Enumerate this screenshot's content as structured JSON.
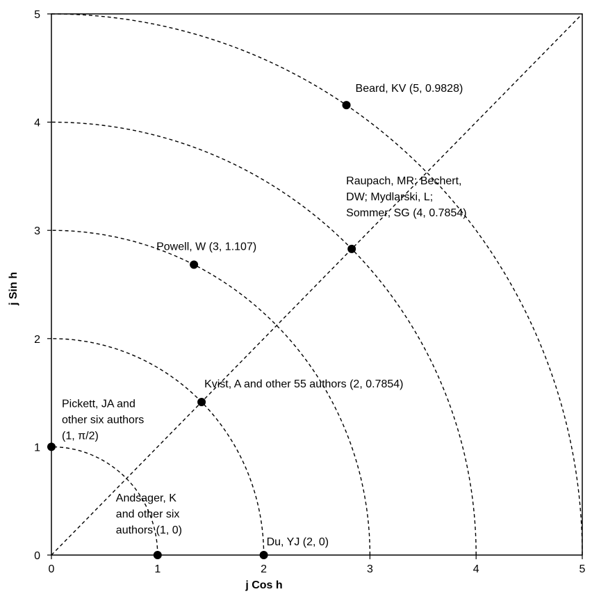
{
  "chart_data": {
    "type": "scatter",
    "xlabel": "j Cos h",
    "ylabel": "j Sin h",
    "xlim": [
      0,
      5
    ],
    "ylim": [
      0,
      5
    ],
    "x_ticks": [
      "0",
      "1",
      "2",
      "3",
      "4",
      "5"
    ],
    "y_ticks": [
      "0",
      "1",
      "2",
      "3",
      "4",
      "5"
    ],
    "grid": false,
    "arcs": [
      1,
      2,
      3,
      4,
      5
    ],
    "diagonal": true,
    "points": [
      {
        "x": 2.7785,
        "y": 4.1573,
        "label": [
          "Beard, KV (5, 0.9828)"
        ]
      },
      {
        "x": 2.8284,
        "y": 2.8284,
        "label": [
          "Raupach, MR; Bechert,",
          "DW; Mydlarski, L;",
          "Sommer, SG (4, 0.7854)"
        ]
      },
      {
        "x": 1.3424,
        "y": 2.6829,
        "label": [
          "Powell, W (3, 1.107)"
        ]
      },
      {
        "x": 1.4142,
        "y": 1.4142,
        "label": [
          "Kvist, A and other 55 authors (2, 0.7854)"
        ]
      },
      {
        "x": 0,
        "y": 1,
        "label": [
          "Pickett, JA and",
          "other six authors",
          "(1, π/2)"
        ]
      },
      {
        "x": 1,
        "y": 0,
        "label": [
          "Andsager, K",
          "and other six",
          "authors (1, 0)"
        ]
      },
      {
        "x": 2,
        "y": 0,
        "label": [
          "Du, YJ (2, 0)"
        ]
      }
    ]
  }
}
